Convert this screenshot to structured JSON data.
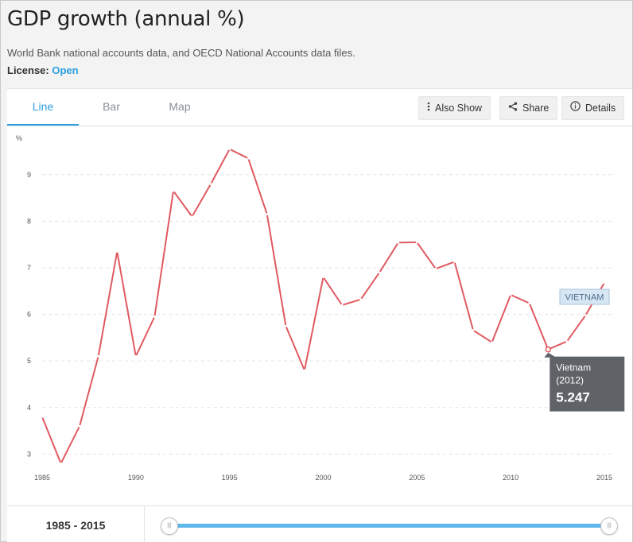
{
  "header": {
    "title": "GDP growth (annual %)",
    "source": "World Bank national accounts data, and OECD National Accounts data files.",
    "license_label": "License:",
    "license_link": "Open"
  },
  "tabs": [
    {
      "label": "Line",
      "active": true
    },
    {
      "label": "Bar",
      "active": false
    },
    {
      "label": "Map",
      "active": false
    }
  ],
  "toolbar": {
    "also_show": "Also Show",
    "share": "Share",
    "details": "Details",
    "also_show_icon": "kebab-icon",
    "share_icon": "share-icon",
    "details_icon": "info-icon"
  },
  "chart_data": {
    "type": "line",
    "ylabel": "%",
    "ylim": [
      2.75,
      9.85
    ],
    "xlim": [
      1985,
      2015
    ],
    "yticks": [
      3,
      4,
      5,
      6,
      7,
      8,
      9
    ],
    "xticks": [
      1985,
      1990,
      1995,
      2000,
      2005,
      2010,
      2015
    ],
    "grid": true,
    "x": [
      1985,
      1986,
      1987,
      1988,
      1989,
      1990,
      1991,
      1992,
      1993,
      1994,
      1995,
      1996,
      1997,
      1998,
      1999,
      2000,
      2001,
      2002,
      2003,
      2004,
      2005,
      2006,
      2007,
      2008,
      2009,
      2010,
      2011,
      2012,
      2013,
      2014,
      2015
    ],
    "series": [
      {
        "name": "VIETNAM",
        "color": "#e05a61",
        "values": [
          3.8,
          2.8,
          3.6,
          5.1,
          7.35,
          5.1,
          5.95,
          8.65,
          8.1,
          8.8,
          9.55,
          9.35,
          8.15,
          5.75,
          4.8,
          6.8,
          6.2,
          6.32,
          6.9,
          7.54,
          7.55,
          6.98,
          7.13,
          5.66,
          5.4,
          6.42,
          6.24,
          5.247,
          5.42,
          5.98,
          6.68
        ]
      }
    ],
    "series_label": "VIETNAM",
    "tooltip": {
      "country": "Vietnam",
      "year": "(2012)",
      "value": "5.247",
      "x": 2012
    }
  },
  "footer": {
    "range_start": "1985",
    "range_sep": "-",
    "range_end": "2015"
  }
}
